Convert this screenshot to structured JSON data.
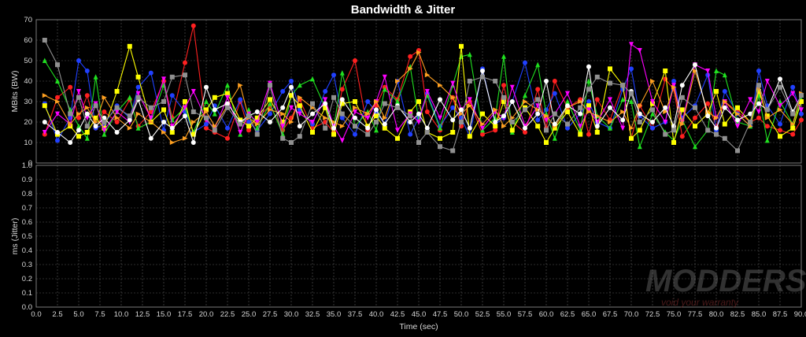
{
  "chart_data": [
    {
      "type": "line",
      "title": "Bandwidth & Jitter",
      "ylabel": "MBits (BW)",
      "ylim": [
        0,
        70
      ],
      "y_ticks": [
        "0",
        "10",
        "20",
        "30",
        "40",
        "50",
        "60",
        "70"
      ],
      "grid": true,
      "x": [
        1,
        2.5,
        4,
        5,
        6,
        7,
        8,
        9.5,
        11,
        12,
        13.5,
        15,
        16,
        17.5,
        18.5,
        20,
        21,
        22.5,
        24,
        25,
        26,
        27.5,
        29,
        30,
        31,
        32.5,
        34,
        35,
        36,
        37.5,
        39,
        40,
        41,
        42.5,
        44,
        45,
        46,
        47.5,
        49,
        50,
        51,
        52.5,
        54,
        55,
        56,
        57.5,
        59,
        60,
        61,
        62.5,
        64,
        65,
        66,
        67.5,
        69,
        70,
        71,
        72.5,
        74,
        75,
        76,
        77.5,
        79,
        80,
        81,
        82.5,
        84,
        85,
        86,
        87.5,
        89,
        90
      ],
      "series": [
        {
          "color": "#ff2020",
          "marker": "circle",
          "values": [
            14,
            32,
            37,
            22,
            33,
            17,
            25,
            20,
            31,
            18,
            25,
            40,
            22,
            49,
            67,
            17,
            15,
            12,
            30,
            16,
            22,
            28,
            16,
            22,
            31,
            17,
            20,
            15,
            36,
            50,
            16,
            28,
            37,
            31,
            52,
            55,
            25,
            16,
            32,
            18,
            30,
            14,
            16,
            38,
            20,
            15,
            36,
            17,
            40,
            27,
            31,
            14,
            31,
            21,
            38,
            12,
            28,
            17,
            41,
            36,
            13,
            22,
            29,
            18,
            30,
            25,
            20,
            22,
            18,
            16,
            14,
            21
          ]
        },
        {
          "color": "#2040ff",
          "marker": "circle",
          "values": [
            29,
            11,
            22,
            50,
            45,
            17,
            19,
            28,
            22,
            37,
            44,
            16,
            33,
            25,
            15,
            19,
            28,
            17,
            31,
            20,
            16,
            24,
            35,
            40,
            26,
            19,
            35,
            43,
            22,
            14,
            30,
            25,
            19,
            40,
            14,
            22,
            34,
            18,
            27,
            22,
            13,
            46,
            19,
            22,
            30,
            49,
            21,
            26,
            34,
            17,
            24,
            30,
            20,
            17,
            36,
            46,
            23,
            17,
            20,
            40,
            22,
            28,
            43,
            16,
            35,
            24,
            18,
            45,
            28,
            19,
            37,
            24
          ]
        },
        {
          "color": "#20e020",
          "marker": "triangle",
          "values": [
            50,
            40,
            26,
            18,
            12,
            42,
            14,
            25,
            32,
            17,
            20,
            38,
            21,
            27,
            15,
            30,
            24,
            38,
            14,
            26,
            17,
            29,
            14,
            33,
            38,
            41,
            27,
            17,
            44,
            18,
            25,
            16,
            36,
            30,
            47,
            21,
            33,
            17,
            38,
            52,
            53,
            16,
            22,
            52,
            15,
            33,
            48,
            24,
            12,
            30,
            16,
            40,
            23,
            17,
            31,
            30,
            8,
            24,
            15,
            11,
            21,
            8,
            16,
            45,
            43,
            20,
            18,
            33,
            11,
            30,
            19,
            31
          ]
        },
        {
          "color": "#ffff00",
          "marker": "square",
          "values": [
            28,
            14,
            18,
            13,
            15,
            22,
            17,
            35,
            57,
            42,
            20,
            26,
            15,
            30,
            14,
            26,
            32,
            34,
            21,
            18,
            22,
            31,
            20,
            33,
            28,
            15,
            27,
            14,
            29,
            30,
            18,
            23,
            17,
            12,
            25,
            30,
            15,
            12,
            15,
            57,
            13,
            24,
            18,
            30,
            16,
            27,
            18,
            10,
            17,
            25,
            14,
            28,
            15,
            46,
            38,
            12,
            16,
            29,
            45,
            10,
            26,
            18,
            24,
            35,
            19,
            27,
            20,
            35,
            23,
            13,
            17,
            30
          ]
        },
        {
          "color": "#ff00ff",
          "marker": "triangle-down",
          "values": [
            15,
            24,
            19,
            35,
            22,
            29,
            16,
            25,
            20,
            34,
            22,
            41,
            18,
            27,
            35,
            21,
            17,
            32,
            15,
            24,
            20,
            39,
            18,
            27,
            24,
            20,
            31,
            18,
            11,
            25,
            22,
            30,
            42,
            16,
            24,
            20,
            35,
            22,
            39,
            26,
            31,
            17,
            25,
            22,
            37,
            18,
            28,
            21,
            24,
            34,
            18,
            26,
            20,
            31,
            17,
            58,
            55,
            30,
            20,
            38,
            20,
            48,
            45,
            22,
            30,
            18,
            31,
            25,
            40,
            28,
            34,
            26
          ]
        },
        {
          "color": "#ffa020",
          "marker": "triangle-right",
          "values": [
            33,
            30,
            19,
            24,
            27,
            20,
            32,
            22,
            17,
            24,
            20,
            15,
            10,
            12,
            20,
            25,
            18,
            28,
            38,
            22,
            19,
            26,
            24,
            20,
            32,
            27,
            22,
            20,
            18,
            27,
            24,
            30,
            22,
            40,
            46,
            54,
            43,
            38,
            32,
            24,
            28,
            19,
            26,
            18,
            22,
            30,
            26,
            23,
            18,
            27,
            30,
            25,
            23,
            20,
            25,
            17,
            28,
            40,
            25,
            37,
            19,
            45,
            25,
            22,
            30,
            24,
            18,
            37,
            22,
            26,
            19,
            34
          ]
        },
        {
          "color": "#ffffff",
          "marker": "circle",
          "values": [
            20,
            15,
            10,
            16,
            24,
            18,
            22,
            15,
            21,
            31,
            12,
            20,
            17,
            23,
            10,
            37,
            26,
            29,
            20,
            23,
            25,
            20,
            27,
            37,
            18,
            24,
            29,
            17,
            31,
            22,
            17,
            26,
            19,
            28,
            20,
            24,
            17,
            31,
            21,
            26,
            17,
            45,
            20,
            23,
            30,
            17,
            24,
            40,
            19,
            28,
            24,
            47,
            18,
            27,
            21,
            35,
            24,
            20,
            27,
            18,
            38,
            48,
            23,
            17,
            27,
            21,
            24,
            29,
            26,
            41,
            25,
            33
          ]
        },
        {
          "color": "#909090",
          "marker": "square",
          "values": [
            60,
            48,
            24,
            32,
            18,
            28,
            20,
            27,
            23,
            32,
            27,
            30,
            42,
            43,
            25,
            22,
            16,
            27,
            19,
            23,
            14,
            38,
            12,
            10,
            13,
            29,
            17,
            32,
            24,
            18,
            14,
            20,
            29,
            27,
            23,
            10,
            15,
            8,
            6,
            20,
            40,
            42,
            40,
            32,
            20,
            26,
            31,
            16,
            24,
            19,
            27,
            36,
            42,
            39,
            38,
            34,
            20,
            26,
            14,
            16,
            32,
            27,
            16,
            14,
            12,
            6,
            20,
            38,
            26,
            37,
            24,
            33
          ]
        }
      ]
    },
    {
      "type": "line",
      "ylabel": "ms (Jitter)",
      "xlabel": "Time (sec)",
      "ylim": [
        0,
        1.0
      ],
      "y_ticks": [
        "0.0",
        "0.1",
        "0.2",
        "0.3",
        "0.4",
        "0.5",
        "0.6",
        "0.7",
        "0.8",
        "0.9",
        "1.0"
      ],
      "xlim": [
        0,
        90
      ],
      "x_ticks": [
        "0.0",
        "2.5",
        "5.0",
        "7.5",
        "10.0",
        "12.5",
        "15.0",
        "17.5",
        "20.0",
        "22.5",
        "25.0",
        "27.5",
        "30.0",
        "32.5",
        "35.0",
        "37.5",
        "40.0",
        "42.5",
        "45.0",
        "47.5",
        "50.0",
        "52.5",
        "55.0",
        "57.5",
        "60.0",
        "62.5",
        "65.0",
        "67.5",
        "70.0",
        "72.5",
        "75.0",
        "77.5",
        "80.0",
        "82.5",
        "85.0",
        "87.5",
        "90.0"
      ],
      "grid": true,
      "series": []
    }
  ],
  "watermark": {
    "brand": "MODDERS INC.",
    "tagline": "void your warranty"
  }
}
